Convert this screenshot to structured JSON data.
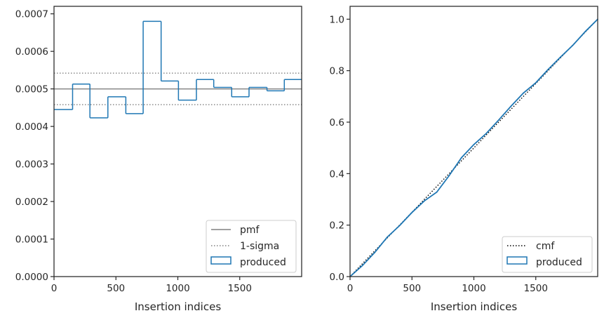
{
  "chart_data": [
    {
      "type": "histogram",
      "xlabel": "Insertion indices",
      "ylabel": "",
      "xlim": [
        0,
        2000
      ],
      "ylim": [
        0,
        0.00072
      ],
      "xticks": [
        0,
        500,
        1000,
        1500
      ],
      "yticks": [
        0,
        0.0001,
        0.0002,
        0.0003,
        0.0004,
        0.0005,
        0.0006,
        0.0007
      ],
      "ytick_labels": [
        "0.0000",
        "0.0001",
        "0.0002",
        "0.0003",
        "0.0004",
        "0.0005",
        "0.0006",
        "0.0007"
      ],
      "bin_edges": [
        0,
        150,
        290,
        435,
        580,
        720,
        865,
        1005,
        1150,
        1290,
        1435,
        1575,
        1720,
        1860,
        2000
      ],
      "bin_values": [
        0.000445,
        0.000513,
        0.000423,
        0.000479,
        0.000434,
        0.00068,
        0.000521,
        0.00047,
        0.000525,
        0.000504,
        0.000479,
        0.000504,
        0.000495,
        0.000525
      ],
      "pmf": 0.0005,
      "sigma_upper": 0.000542,
      "sigma_lower": 0.000458,
      "legend": {
        "position": "lower right",
        "entries": [
          {
            "label": "pmf",
            "style": "solid-line",
            "color": "#808080"
          },
          {
            "label": "1-sigma",
            "style": "dotted-line",
            "color": "#808080"
          },
          {
            "label": "produced",
            "style": "step-patch",
            "color": "#1f77b4"
          }
        ]
      }
    },
    {
      "type": "line",
      "xlabel": "Insertion indices",
      "ylabel": "",
      "xlim": [
        0,
        2000
      ],
      "ylim": [
        0,
        1.05
      ],
      "xticks": [
        0,
        500,
        1000,
        1500
      ],
      "yticks": [
        0,
        0.2,
        0.4,
        0.6,
        0.8,
        1.0
      ],
      "ytick_labels": [
        "0.0",
        "0.2",
        "0.4",
        "0.6",
        "0.8",
        "1.0"
      ],
      "series": [
        {
          "name": "cmf",
          "style": "dotted",
          "color": "#000000",
          "x": [
            0,
            2000
          ],
          "y": [
            0,
            1.0
          ]
        },
        {
          "name": "produced",
          "style": "step",
          "color": "#1f77b4",
          "x": [
            0,
            100,
            200,
            300,
            400,
            500,
            600,
            700,
            800,
            900,
            1000,
            1100,
            1200,
            1300,
            1400,
            1500,
            1600,
            1700,
            1800,
            1900,
            2000
          ],
          "y": [
            0,
            0.043,
            0.094,
            0.153,
            0.198,
            0.249,
            0.294,
            0.328,
            0.392,
            0.462,
            0.513,
            0.556,
            0.608,
            0.662,
            0.713,
            0.753,
            0.805,
            0.853,
            0.899,
            0.952,
            1.0
          ]
        }
      ],
      "legend": {
        "position": "lower right",
        "entries": [
          {
            "label": "cmf",
            "style": "dotted-line",
            "color": "#000000"
          },
          {
            "label": "produced",
            "style": "step-patch",
            "color": "#1f77b4"
          }
        ]
      }
    }
  ]
}
